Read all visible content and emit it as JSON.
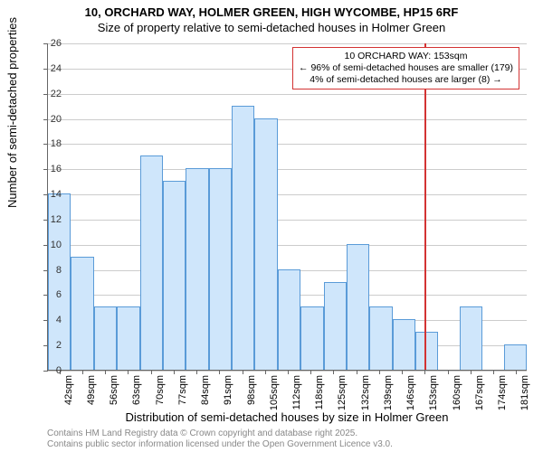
{
  "title": "10, ORCHARD WAY, HOLMER GREEN, HIGH WYCOMBE, HP15 6RF",
  "subtitle": "Size of property relative to semi-detached houses in Holmer Green",
  "y_axis_title": "Number of semi-detached properties",
  "x_axis_title": "Distribution of semi-detached houses by size in Holmer Green",
  "footer_line1": "Contains HM Land Registry data © Crown copyright and database right 2025.",
  "footer_line2": "Contains public sector information licensed under the Open Government Licence v3.0.",
  "chart": {
    "type": "histogram",
    "ylim": [
      0,
      26
    ],
    "ytick_step": 2,
    "yticks": [
      0,
      2,
      4,
      6,
      8,
      10,
      12,
      14,
      16,
      18,
      20,
      22,
      24,
      26
    ],
    "xtick_labels": [
      "42sqm",
      "49sqm",
      "56sqm",
      "63sqm",
      "70sqm",
      "77sqm",
      "84sqm",
      "91sqm",
      "98sqm",
      "105sqm",
      "112sqm",
      "118sqm",
      "125sqm",
      "132sqm",
      "139sqm",
      "146sqm",
      "153sqm",
      "160sqm",
      "167sqm",
      "174sqm",
      "181sqm"
    ],
    "values": [
      14,
      9,
      5,
      5,
      17,
      15,
      16,
      16,
      21,
      20,
      8,
      5,
      7,
      10,
      5,
      4,
      3,
      0,
      5,
      0,
      2
    ],
    "bar_fill": "#cfe6fb",
    "bar_stroke": "#5a9bd8",
    "grid_color": "#cccccc",
    "axis_color": "#666666",
    "background_color": "#ffffff",
    "reference_line": {
      "index": 16,
      "color": "#d33333"
    },
    "title_fontsize": 13,
    "label_fontsize": 11,
    "axis_title_fontsize": 13
  },
  "annotation": {
    "line1": "10 ORCHARD WAY: 153sqm",
    "line2": "← 96% of semi-detached houses are smaller (179)",
    "line3": "4% of semi-detached houses are larger (8) →",
    "border_color": "#d33333"
  }
}
